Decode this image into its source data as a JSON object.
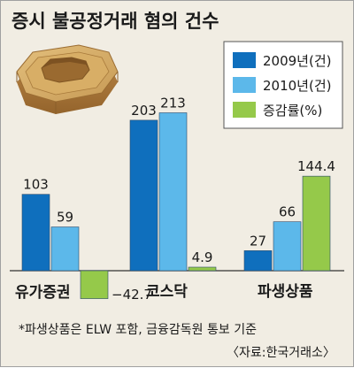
{
  "chart_data": {
    "type": "bar",
    "title": "증시 불공정거래 혐의 건수",
    "categories": [
      "유가증권",
      "코스닥",
      "파생상품"
    ],
    "series": [
      {
        "name": "2009년(건)",
        "values": [
          103,
          203,
          27
        ],
        "labels": [
          "103",
          "203",
          "27"
        ],
        "color": "#0f6fbd"
      },
      {
        "name": "2010년(건)",
        "values": [
          59,
          213,
          66
        ],
        "labels": [
          "59",
          "213",
          "66"
        ],
        "color": "#5cb8ea"
      },
      {
        "name": "증감률(%)",
        "values": [
          -42.7,
          4.9,
          144.4
        ],
        "labels": [
          "−42.7",
          "4.9",
          "144.4"
        ],
        "color": "#95c94a"
      }
    ],
    "legend_position": "top-right",
    "grid": false
  },
  "footnote": "*파생상품은 ELW 포함, 금융감독원 통보 기준",
  "source": "〈자료:한국거래소〉",
  "icon": "wooden-hexagon-frame-icon"
}
